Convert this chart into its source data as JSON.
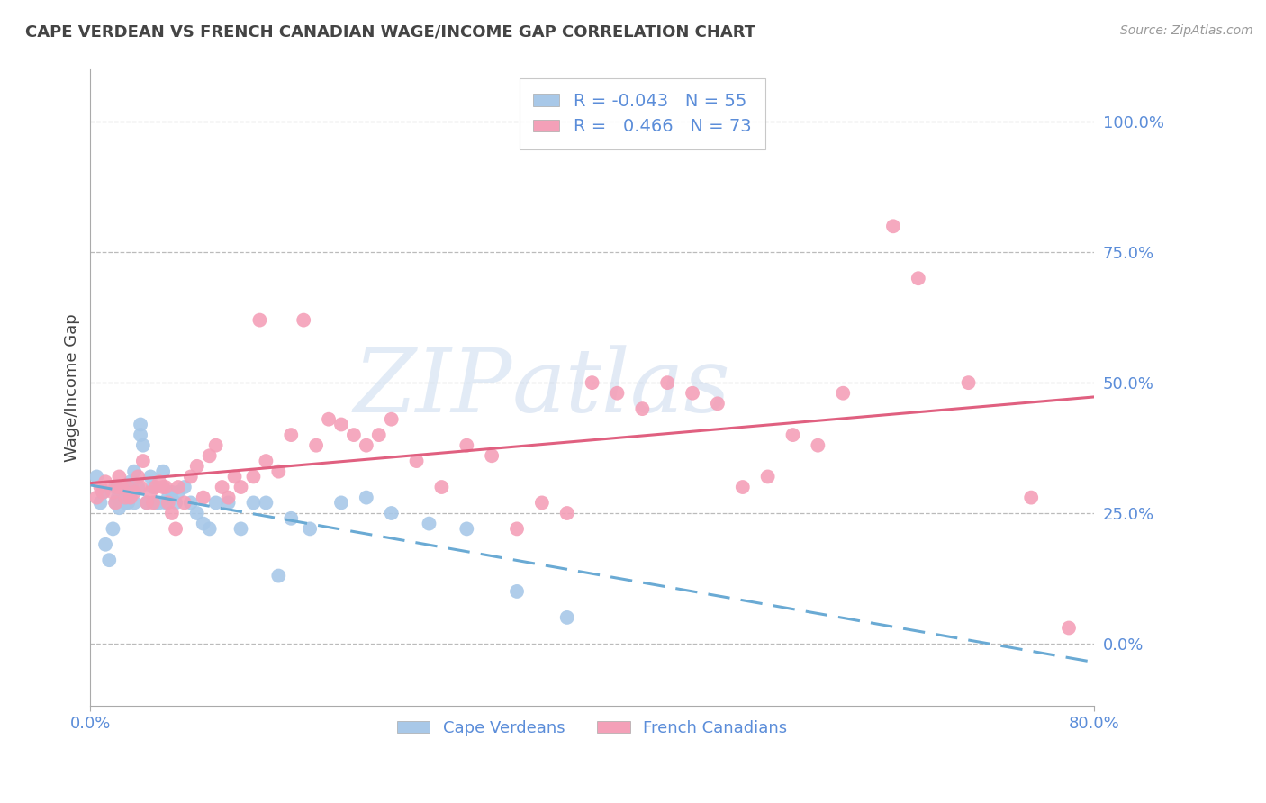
{
  "title": "CAPE VERDEAN VS FRENCH CANADIAN WAGE/INCOME GAP CORRELATION CHART",
  "source": "Source: ZipAtlas.com",
  "ylabel": "Wage/Income Gap",
  "ytick_labels": [
    "0.0%",
    "25.0%",
    "50.0%",
    "75.0%",
    "100.0%"
  ],
  "ytick_values": [
    0.0,
    0.25,
    0.5,
    0.75,
    1.0
  ],
  "xlim": [
    0.0,
    0.8
  ],
  "ylim": [
    -0.12,
    1.1
  ],
  "blue_label": "Cape Verdeans",
  "pink_label": "French Canadians",
  "blue_R": -0.043,
  "blue_N": 55,
  "pink_R": 0.466,
  "pink_N": 73,
  "blue_color": "#a8c8e8",
  "pink_color": "#f4a0b8",
  "blue_line_color": "#6aaad4",
  "pink_line_color": "#e06080",
  "grid_color": "#bbbbbb",
  "axis_label_color": "#5b8dd9",
  "title_color": "#444444",
  "watermark_color": "#d0dff0",
  "blue_x": [
    0.005,
    0.008,
    0.01,
    0.012,
    0.015,
    0.018,
    0.02,
    0.02,
    0.022,
    0.022,
    0.023,
    0.025,
    0.025,
    0.028,
    0.03,
    0.03,
    0.032,
    0.033,
    0.035,
    0.035,
    0.038,
    0.04,
    0.04,
    0.042,
    0.045,
    0.048,
    0.05,
    0.052,
    0.055,
    0.058,
    0.06,
    0.062,
    0.065,
    0.068,
    0.07,
    0.075,
    0.08,
    0.085,
    0.09,
    0.095,
    0.1,
    0.11,
    0.12,
    0.13,
    0.14,
    0.15,
    0.16,
    0.175,
    0.2,
    0.22,
    0.24,
    0.27,
    0.3,
    0.34,
    0.38
  ],
  "blue_y": [
    0.32,
    0.27,
    0.29,
    0.19,
    0.16,
    0.22,
    0.3,
    0.27,
    0.3,
    0.28,
    0.26,
    0.28,
    0.3,
    0.27,
    0.3,
    0.27,
    0.31,
    0.3,
    0.33,
    0.27,
    0.3,
    0.42,
    0.4,
    0.38,
    0.27,
    0.32,
    0.3,
    0.27,
    0.27,
    0.33,
    0.27,
    0.28,
    0.29,
    0.27,
    0.29,
    0.3,
    0.27,
    0.25,
    0.23,
    0.22,
    0.27,
    0.27,
    0.22,
    0.27,
    0.27,
    0.13,
    0.24,
    0.22,
    0.27,
    0.28,
    0.25,
    0.23,
    0.22,
    0.1,
    0.05
  ],
  "pink_x": [
    0.005,
    0.008,
    0.01,
    0.012,
    0.018,
    0.02,
    0.022,
    0.023,
    0.025,
    0.028,
    0.03,
    0.032,
    0.035,
    0.038,
    0.04,
    0.042,
    0.045,
    0.048,
    0.05,
    0.052,
    0.055,
    0.058,
    0.06,
    0.062,
    0.065,
    0.068,
    0.07,
    0.075,
    0.08,
    0.085,
    0.09,
    0.095,
    0.1,
    0.105,
    0.11,
    0.115,
    0.12,
    0.13,
    0.135,
    0.14,
    0.15,
    0.16,
    0.17,
    0.18,
    0.19,
    0.2,
    0.21,
    0.22,
    0.23,
    0.24,
    0.26,
    0.28,
    0.3,
    0.32,
    0.34,
    0.36,
    0.38,
    0.4,
    0.42,
    0.44,
    0.46,
    0.48,
    0.5,
    0.52,
    0.54,
    0.56,
    0.58,
    0.6,
    0.64,
    0.66,
    0.7,
    0.75,
    0.78
  ],
  "pink_y": [
    0.28,
    0.3,
    0.29,
    0.31,
    0.29,
    0.27,
    0.3,
    0.32,
    0.3,
    0.28,
    0.3,
    0.28,
    0.29,
    0.32,
    0.3,
    0.35,
    0.27,
    0.29,
    0.27,
    0.3,
    0.31,
    0.3,
    0.3,
    0.27,
    0.25,
    0.22,
    0.3,
    0.27,
    0.32,
    0.34,
    0.28,
    0.36,
    0.38,
    0.3,
    0.28,
    0.32,
    0.3,
    0.32,
    0.62,
    0.35,
    0.33,
    0.4,
    0.62,
    0.38,
    0.43,
    0.42,
    0.4,
    0.38,
    0.4,
    0.43,
    0.35,
    0.3,
    0.38,
    0.36,
    0.22,
    0.27,
    0.25,
    0.5,
    0.48,
    0.45,
    0.5,
    0.48,
    0.46,
    0.3,
    0.32,
    0.4,
    0.38,
    0.48,
    0.8,
    0.7,
    0.5,
    0.28,
    0.03
  ]
}
